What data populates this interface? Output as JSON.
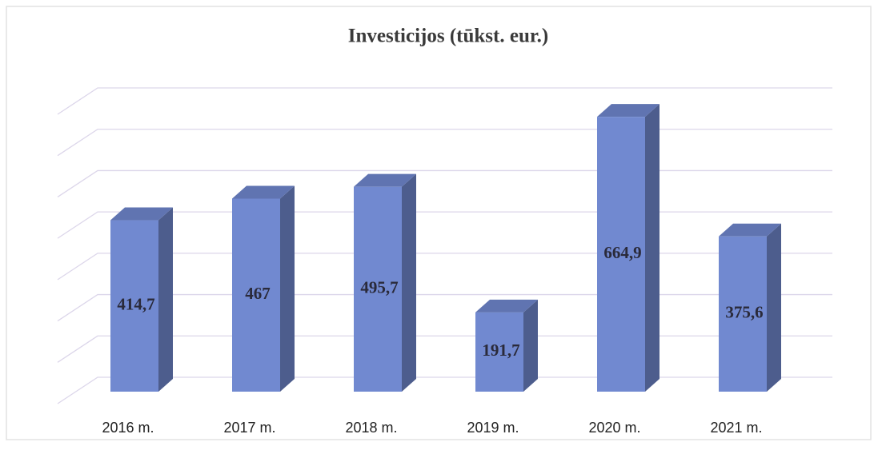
{
  "chart_data": {
    "type": "bar3d",
    "title": "Investicijos (tūkst. eur.)",
    "categories": [
      "2016 m.",
      "2017 m.",
      "2018 m.",
      "2019 m.",
      "2020 m.",
      "2021 m."
    ],
    "values": [
      414.7,
      467,
      495.7,
      191.7,
      664.9,
      375.6
    ],
    "value_labels": [
      "414,7",
      "467",
      "495,7",
      "191,7",
      "664,9",
      "375,6"
    ],
    "color": "#7189d0",
    "ylim": [
      0,
      700
    ],
    "yticks": [
      0,
      100,
      200,
      300,
      400,
      500,
      600,
      700
    ],
    "grid": true
  }
}
